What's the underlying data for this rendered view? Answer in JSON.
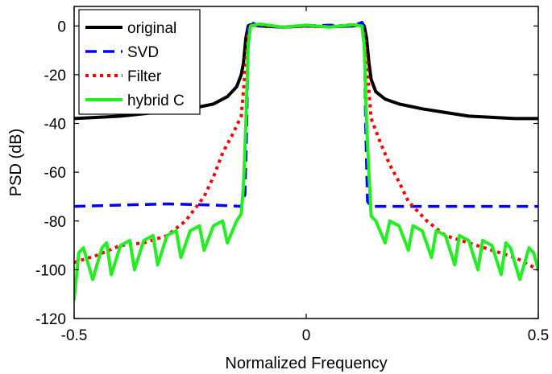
{
  "chart_data": {
    "type": "line",
    "title": "",
    "xlabel": "Normalized Frequency",
    "ylabel": "PSD (dB)",
    "xlim": [
      -0.5,
      0.5
    ],
    "ylim": [
      -120,
      8
    ],
    "xticks": [
      -0.5,
      0,
      0.5
    ],
    "xtick_labels": [
      "-0.5",
      "0",
      "0.5"
    ],
    "yticks": [
      0,
      -20,
      -40,
      -60,
      -80,
      -100,
      -120
    ],
    "ytick_labels": [
      "0",
      "-20",
      "-40",
      "-60",
      "-80",
      "-100",
      "-120"
    ],
    "grid": false,
    "legend_position": "top-left",
    "series": [
      {
        "name": "original",
        "color": "#000000",
        "style": "solid",
        "width": 4,
        "x": [
          -0.5,
          -0.45,
          -0.4,
          -0.35,
          -0.3,
          -0.25,
          -0.2,
          -0.17,
          -0.15,
          -0.14,
          -0.135,
          -0.13,
          -0.125,
          -0.12,
          -0.1,
          -0.05,
          0,
          0.05,
          0.1,
          0.12,
          0.125,
          0.13,
          0.135,
          0.14,
          0.15,
          0.17,
          0.2,
          0.25,
          0.3,
          0.35,
          0.4,
          0.45,
          0.5
        ],
        "y": [
          -38,
          -37.5,
          -37,
          -36,
          -35,
          -34,
          -32,
          -29,
          -25,
          -20,
          -15,
          -5,
          0,
          0.5,
          0,
          -0.5,
          0,
          -0.3,
          0,
          0.5,
          0,
          -5,
          -15,
          -22,
          -27,
          -30,
          -32,
          -34,
          -35.5,
          -37,
          -37.5,
          -38,
          -38
        ]
      },
      {
        "name": "SVD",
        "color": "#0000ff",
        "style": "dashed",
        "width": 3.5,
        "x": [
          -0.5,
          -0.4,
          -0.3,
          -0.2,
          -0.14,
          -0.132,
          -0.128,
          -0.125,
          -0.12,
          -0.1,
          -0.05,
          0,
          0.05,
          0.1,
          0.12,
          0.125,
          0.128,
          0.132,
          0.14,
          0.2,
          0.3,
          0.4,
          0.5
        ],
        "y": [
          -74,
          -73.5,
          -73,
          -73.5,
          -74,
          -69,
          -40,
          0,
          1.5,
          0,
          -0.5,
          0,
          0.3,
          0,
          1.5,
          0,
          -40,
          -72,
          -74,
          -74,
          -74,
          -74,
          -74
        ]
      },
      {
        "name": "Filter",
        "color": "#ff0000",
        "style": "dotted",
        "width": 4,
        "x": [
          -0.5,
          -0.45,
          -0.4,
          -0.35,
          -0.3,
          -0.26,
          -0.22,
          -0.2,
          -0.18,
          -0.16,
          -0.14,
          -0.13,
          -0.125,
          -0.12,
          -0.1,
          -0.05,
          0,
          0.05,
          0.1,
          0.12,
          0.125,
          0.13,
          0.14,
          0.16,
          0.18,
          0.2,
          0.22,
          0.26,
          0.3,
          0.35,
          0.4,
          0.45,
          0.5
        ],
        "y": [
          -97,
          -94,
          -90,
          -89,
          -86,
          -80,
          -70,
          -62,
          -52,
          -45,
          -37,
          -15,
          -3,
          0,
          0.5,
          -0.5,
          0,
          -0.3,
          0.5,
          0,
          -3,
          -15,
          -38,
          -48,
          -57,
          -64,
          -72,
          -80,
          -86,
          -89,
          -92,
          -95,
          -100
        ]
      },
      {
        "name": "hybrid C",
        "color": "#22ee22",
        "style": "solid",
        "width": 4,
        "x": [
          -0.5,
          -0.49,
          -0.48,
          -0.46,
          -0.44,
          -0.43,
          -0.42,
          -0.4,
          -0.38,
          -0.37,
          -0.35,
          -0.33,
          -0.32,
          -0.3,
          -0.28,
          -0.27,
          -0.25,
          -0.23,
          -0.22,
          -0.2,
          -0.18,
          -0.17,
          -0.15,
          -0.14,
          -0.135,
          -0.13,
          -0.125,
          -0.12,
          -0.1,
          -0.05,
          0,
          0.05,
          0.1,
          0.12,
          0.125,
          0.13,
          0.135,
          0.14,
          0.15,
          0.17,
          0.18,
          0.2,
          0.22,
          0.23,
          0.25,
          0.27,
          0.28,
          0.3,
          0.32,
          0.33,
          0.35,
          0.37,
          0.38,
          0.4,
          0.42,
          0.43,
          0.44,
          0.46,
          0.48,
          0.49,
          0.5
        ],
        "y": [
          -112,
          -93,
          -91,
          -104,
          -91,
          -89,
          -102,
          -90,
          -88,
          -100,
          -88,
          -86,
          -98,
          -86,
          -84,
          -95,
          -84,
          -82,
          -92,
          -82,
          -80,
          -89,
          -80,
          -77,
          -65,
          -40,
          -8,
          0,
          0.8,
          -0.5,
          0.3,
          -0.5,
          0.5,
          0,
          -8,
          -40,
          -60,
          -78,
          -80,
          -89,
          -80,
          -82,
          -92,
          -82,
          -84,
          -95,
          -84,
          -86,
          -98,
          -86,
          -88,
          -100,
          -88,
          -90,
          -102,
          -89,
          -91,
          -104,
          -91,
          -93,
          -100
        ]
      }
    ]
  }
}
